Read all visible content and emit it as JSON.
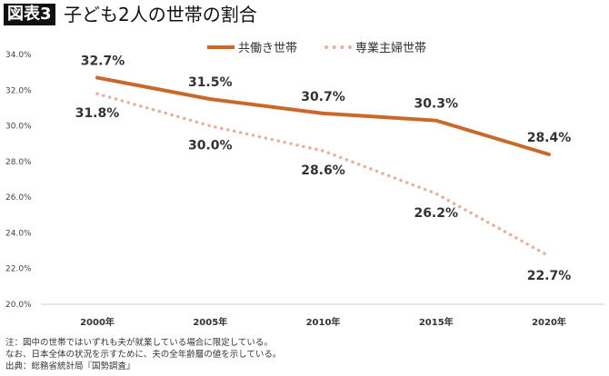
{
  "header": {
    "badge": "図表3",
    "title": "子ども2人の世帯の割合"
  },
  "notes": [
    "注：図中の世帯ではいずれも夫が就業している場合に限定している。",
    "なお、日本全体の状況を示すために、夫の全年齢層の値を示している。",
    "出典：総務省統計局『国勢調査』"
  ],
  "chart_data": {
    "type": "line",
    "title": "子ども2人の世帯の割合",
    "categories": [
      "2000年",
      "2005年",
      "2010年",
      "2015年",
      "2020年"
    ],
    "ylim": [
      20,
      34
    ],
    "yticks": [
      "20.0%",
      "22.0%",
      "24.0%",
      "26.0%",
      "28.0%",
      "30.0%",
      "32.0%",
      "34.0%"
    ],
    "ytick_values": [
      20,
      22,
      24,
      26,
      28,
      30,
      32,
      34
    ],
    "grid": false,
    "legend": "top-center",
    "series": [
      {
        "name": "共働き世帯",
        "values": [
          32.7,
          31.5,
          30.7,
          30.3,
          28.4
        ],
        "labels": [
          "32.7%",
          "31.5%",
          "30.7%",
          "30.3%",
          "28.4%"
        ],
        "color": "#c8692a",
        "style": "solid"
      },
      {
        "name": "専業主婦世帯",
        "values": [
          31.8,
          30.0,
          28.6,
          26.2,
          22.7
        ],
        "labels": [
          "31.8%",
          "30.0%",
          "28.6%",
          "26.2%",
          "22.7%"
        ],
        "color": "#e6b09a",
        "style": "dotted"
      }
    ]
  }
}
